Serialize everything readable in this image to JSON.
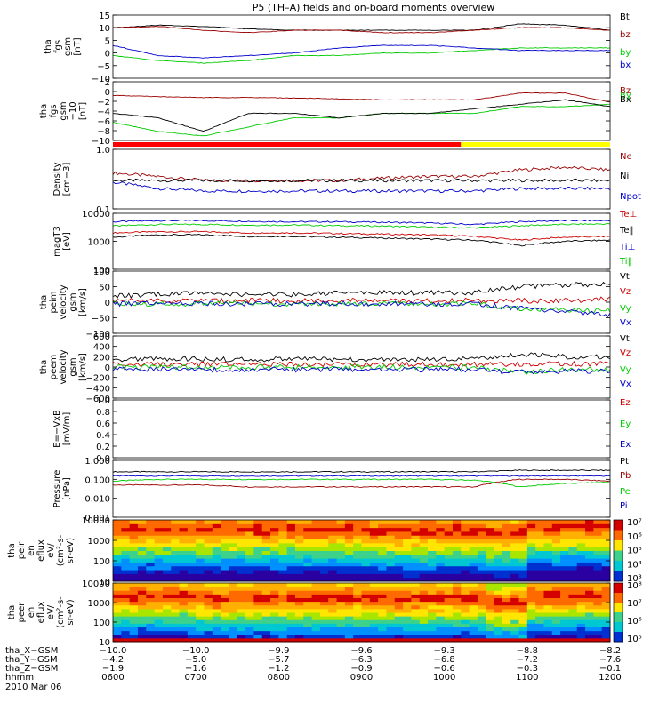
{
  "title": "P5 (TH–A) fields and on-board moments overview",
  "date": "2010 Mar 06",
  "colors": {
    "black": "#000000",
    "red": "#cc0000",
    "green": "#00cc00",
    "blue": "#0000cc",
    "darkred": "#9b0000"
  },
  "chart_data": [
    {
      "type": "line",
      "ylabel": [
        "tha",
        "fgs",
        "gsm",
        "[nT]"
      ],
      "ylim": [
        -10,
        15
      ],
      "yticks": [
        "15",
        "10",
        "5",
        "0",
        "−5",
        "−10"
      ],
      "series": [
        {
          "name": "Bt",
          "color": "black",
          "values": [
            10,
            11,
            10.5,
            9.5,
            9,
            9,
            9,
            9,
            9,
            11.5,
            11,
            9
          ]
        },
        {
          "name": "bz",
          "color": "darkred",
          "values": [
            10,
            10.5,
            9,
            8,
            9,
            9,
            8,
            8,
            9,
            10,
            10,
            9
          ]
        },
        {
          "name": "by",
          "color": "green",
          "values": [
            -1,
            -3,
            -4,
            -3,
            -1,
            -1,
            0,
            0,
            1,
            2,
            2,
            2
          ]
        },
        {
          "name": "bx",
          "color": "blue",
          "values": [
            3,
            -1,
            -2,
            -1,
            0,
            2,
            3,
            3,
            2,
            1,
            1,
            1
          ]
        }
      ]
    },
    {
      "type": "line",
      "ylabel": [
        "tha",
        "fgs",
        "gsm",
        "−10",
        "[nT]"
      ],
      "ylim": [
        -10,
        3
      ],
      "yticks": [
        "2",
        "0",
        "−2",
        "−4",
        "−6",
        "−8",
        "−10"
      ],
      "legend_overlap": [
        "Bz",
        "By",
        "Bx"
      ],
      "series": [
        {
          "name": "Bz",
          "color": "darkred",
          "values": [
            0,
            -0.3,
            -0.5,
            -0.5,
            -0.6,
            -0.8,
            -1,
            -1,
            -1,
            0.5,
            0.5,
            -1.5
          ]
        },
        {
          "name": "By",
          "color": "green",
          "values": [
            -6,
            -8,
            -9,
            -7,
            -5,
            -5,
            -4,
            -4,
            -4,
            -2.5,
            -2.5,
            -2
          ]
        },
        {
          "name": "Bx",
          "color": "black",
          "values": [
            -4,
            -5,
            -8,
            -4,
            -4,
            -5,
            -4,
            -4,
            -3,
            -2,
            -1,
            -2.5
          ]
        }
      ]
    },
    {
      "type": "line",
      "ylabel": [
        "Density",
        "[cm−3]"
      ],
      "scale": "log",
      "ylim": [
        0.1,
        1.0
      ],
      "yticks": [
        "1.0",
        "0.1"
      ],
      "series": [
        {
          "name": "Ne",
          "color": "darkred",
          "values": [
            0.4,
            0.35,
            0.3,
            0.3,
            0.3,
            0.3,
            0.33,
            0.35,
            0.35,
            0.45,
            0.5,
            0.45
          ]
        },
        {
          "name": "Ni",
          "color": "black",
          "values": [
            0.3,
            0.3,
            0.3,
            0.3,
            0.3,
            0.3,
            0.3,
            0.3,
            0.3,
            0.3,
            0.3,
            0.3
          ]
        },
        {
          "name": "Npot",
          "color": "blue",
          "values": [
            0.28,
            0.22,
            0.2,
            0.2,
            0.2,
            0.2,
            0.2,
            0.2,
            0.2,
            0.22,
            0.22,
            0.22
          ]
        }
      ]
    },
    {
      "type": "line",
      "ylabel": [
        "magT3",
        "[eV]"
      ],
      "scale": "log",
      "ylim": [
        100,
        10000
      ],
      "yticks": [
        "10000",
        "1000",
        "100"
      ],
      "series": [
        {
          "name": "Te⊥",
          "color": "red",
          "values": [
            2000,
            2200,
            2200,
            2000,
            2000,
            1900,
            1800,
            1700,
            1500,
            1100,
            1400,
            1500
          ]
        },
        {
          "name": "Te‖",
          "color": "black",
          "values": [
            1400,
            1700,
            1700,
            1500,
            1500,
            1400,
            1300,
            1200,
            1100,
            700,
            1000,
            1100
          ]
        },
        {
          "name": "Ti⊥",
          "color": "blue",
          "values": [
            5000,
            5500,
            5500,
            5200,
            5000,
            5000,
            4800,
            4500,
            4000,
            5000,
            5500,
            5500
          ]
        },
        {
          "name": "Ti‖",
          "color": "green",
          "values": [
            3500,
            4000,
            4000,
            3800,
            3800,
            3600,
            3500,
            3200,
            3000,
            3600,
            4000,
            4200
          ]
        }
      ]
    },
    {
      "type": "line",
      "ylabel": [
        "tha",
        "peim",
        "velocity",
        "gsm",
        "[km/s]"
      ],
      "ylim": [
        -100,
        100
      ],
      "yticks": [
        "100",
        "50",
        "0",
        "−50",
        "−100"
      ],
      "series": [
        {
          "name": "Vt",
          "color": "black",
          "values": [
            20,
            25,
            30,
            25,
            25,
            30,
            30,
            30,
            30,
            50,
            55,
            60
          ]
        },
        {
          "name": "Vz",
          "color": "red",
          "values": [
            5,
            5,
            5,
            5,
            5,
            5,
            5,
            5,
            5,
            5,
            5,
            10
          ]
        },
        {
          "name": "Vy",
          "color": "green",
          "values": [
            -5,
            -5,
            -5,
            -5,
            -5,
            -5,
            -5,
            -5,
            -5,
            -20,
            -25,
            -25
          ]
        },
        {
          "name": "Vx",
          "color": "blue",
          "values": [
            -5,
            -5,
            -5,
            -5,
            -5,
            -5,
            -5,
            -5,
            -5,
            -20,
            -30,
            -40
          ]
        }
      ]
    },
    {
      "type": "line",
      "ylabel": [
        "tha",
        "peem",
        "velocity",
        "gsm",
        "[km/s]"
      ],
      "ylim": [
        -600,
        600
      ],
      "yticks": [
        "600",
        "400",
        "200",
        "0",
        "−200",
        "−400",
        "−600"
      ],
      "series": [
        {
          "name": "Vt",
          "color": "black",
          "values": [
            150,
            160,
            150,
            150,
            150,
            150,
            150,
            150,
            150,
            250,
            200,
            200
          ]
        },
        {
          "name": "Vz",
          "color": "red",
          "values": [
            50,
            50,
            50,
            50,
            50,
            50,
            50,
            50,
            50,
            60,
            60,
            60
          ]
        },
        {
          "name": "Vy",
          "color": "green",
          "values": [
            0,
            0,
            0,
            0,
            0,
            0,
            0,
            0,
            0,
            -100,
            -50,
            -50
          ]
        },
        {
          "name": "Vx",
          "color": "blue",
          "values": [
            -50,
            -50,
            -50,
            -50,
            -50,
            -50,
            -50,
            -50,
            -50,
            -100,
            -80,
            -80
          ]
        }
      ]
    },
    {
      "type": "line",
      "ylabel": [
        "E=−VxB",
        "[mV/m]"
      ],
      "ylim": [
        0,
        1
      ],
      "yticks": [
        "1.0",
        "0.8",
        "0.6",
        "0.4",
        "0.2",
        "0.0"
      ],
      "series": [
        {
          "name": "Ez",
          "color": "red",
          "values": []
        },
        {
          "name": "Ey",
          "color": "green",
          "values": []
        },
        {
          "name": "Ex",
          "color": "blue",
          "values": []
        }
      ]
    },
    {
      "type": "line",
      "ylabel": [
        "Pressure",
        "[nPa]"
      ],
      "scale": "log",
      "ylim": [
        0.001,
        1
      ],
      "yticks": [
        "1.000",
        "0.100",
        "0.010",
        "0.001"
      ],
      "series": [
        {
          "name": "Pt",
          "color": "black",
          "values": [
            0.25,
            0.25,
            0.25,
            0.25,
            0.25,
            0.25,
            0.25,
            0.25,
            0.25,
            0.3,
            0.3,
            0.3
          ]
        },
        {
          "name": "Pb",
          "color": "darkred",
          "values": [
            0.05,
            0.05,
            0.05,
            0.04,
            0.04,
            0.04,
            0.04,
            0.04,
            0.04,
            0.1,
            0.1,
            0.08
          ]
        },
        {
          "name": "Pe",
          "color": "green",
          "values": [
            0.08,
            0.1,
            0.1,
            0.1,
            0.1,
            0.1,
            0.1,
            0.1,
            0.09,
            0.04,
            0.06,
            0.07
          ]
        },
        {
          "name": "Pi",
          "color": "blue",
          "values": [
            0.15,
            0.15,
            0.15,
            0.15,
            0.15,
            0.15,
            0.15,
            0.15,
            0.15,
            0.15,
            0.15,
            0.15
          ]
        }
      ]
    },
    {
      "type": "heatmap",
      "ylabel": [
        "tha",
        "peir",
        "en",
        "eflux",
        "eV/",
        "(cm²-s-",
        "sr-eV)"
      ],
      "ylim": [
        10,
        10000
      ],
      "yticks": [
        "10000",
        "1000",
        "100",
        "10"
      ],
      "colorbar": [
        "10⁷",
        "10⁶",
        "10⁵",
        "10⁴",
        "10³"
      ],
      "peak_energy_eV": [
        3000,
        3000,
        3000,
        3000,
        3000,
        3000,
        2500,
        2500,
        2500,
        2000,
        4000,
        4000
      ]
    },
    {
      "type": "heatmap",
      "ylabel": [
        "tha",
        "peer",
        "en",
        "eflux",
        "eV/",
        "(cm²-s-",
        "sr-eV)"
      ],
      "ylim": [
        10,
        10000
      ],
      "yticks": [
        "10000",
        "1000",
        "100",
        "10"
      ],
      "colorbar": [
        "10⁸",
        "10⁷",
        "10⁶",
        "10⁵"
      ],
      "peak_energy_eV": [
        2000,
        2000,
        1500,
        1500,
        1500,
        1500,
        1500,
        1500,
        1500,
        800,
        2000,
        2000
      ]
    }
  ],
  "x_axis": {
    "rows": [
      {
        "label": "tha_X−GSM",
        "values": [
          "−10.0",
          "−10.0",
          "−9.9",
          "−9.6",
          "−9.3",
          "−8.8",
          "−8.2"
        ]
      },
      {
        "label": "tha_Y−GSM",
        "values": [
          "−4.2",
          "−5.0",
          "−5.7",
          "−6.3",
          "−6.8",
          "−7.2",
          "−7.6"
        ]
      },
      {
        "label": "tha_Z−GSM",
        "values": [
          "−1.9",
          "−1.6",
          "−1.2",
          "−0.9",
          "−0.6",
          "−0.3",
          "−0.1"
        ]
      },
      {
        "label": "hhmm",
        "values": [
          "0600",
          "0700",
          "0800",
          "0900",
          "1000",
          "1100",
          "1200"
        ]
      }
    ]
  },
  "mode_bar": {
    "red_fraction": 0.7,
    "colors": [
      "red",
      "yellow"
    ]
  }
}
